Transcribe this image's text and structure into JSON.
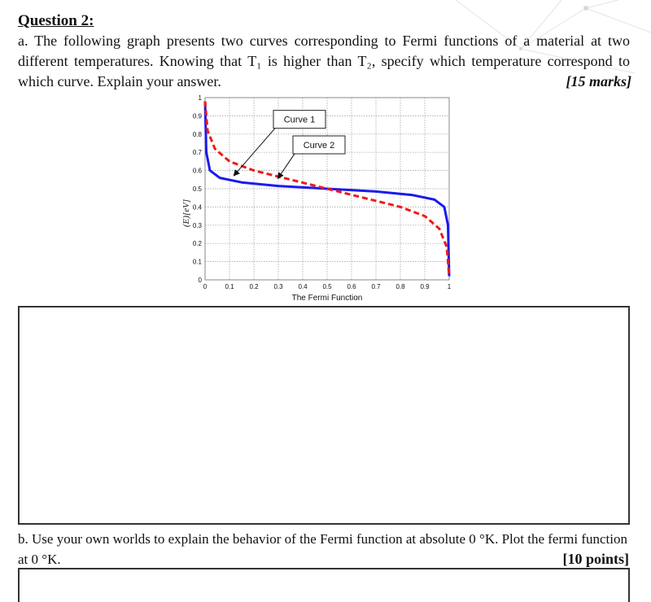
{
  "question": {
    "title": "Question 2:",
    "part_a_text": "a. The following graph presents two curves corresponding to Fermi functions of a material at two different temperatures. Knowing that T₁ is higher than T₂, specify which temperature correspond to which curve. Explain your answer.",
    "part_a_marks": "[15 marks]",
    "part_b_text": "b. Use your own worlds to explain the behavior of the Fermi function at absolute 0 °K. Plot the fermi function at 0 °K.",
    "part_b_marks": "[10 points]"
  },
  "chart_data": {
    "type": "line",
    "xlabel": "The Fermi Function",
    "ylabel": "(E)[eV]",
    "xlim": [
      0,
      1
    ],
    "ylim": [
      0,
      1
    ],
    "x_ticks": [
      "0",
      "0.1",
      "0.2",
      "0.3",
      "0.4",
      "0.5",
      "0.6",
      "0.7",
      "0.8",
      "0.9",
      "1"
    ],
    "y_ticks": [
      "0",
      "0.1",
      "0.2",
      "0.3",
      "0.4",
      "0.5",
      "0.6",
      "0.7",
      "0.8",
      "0.9",
      "1"
    ],
    "grid": true,
    "series": [
      {
        "name": "Curve 1",
        "color": "#1a1aee",
        "style": "solid",
        "points": [
          [
            0.0,
            0.98
          ],
          [
            0.005,
            0.7
          ],
          [
            0.02,
            0.6
          ],
          [
            0.06,
            0.56
          ],
          [
            0.15,
            0.535
          ],
          [
            0.3,
            0.515
          ],
          [
            0.5,
            0.5
          ],
          [
            0.7,
            0.485
          ],
          [
            0.85,
            0.465
          ],
          [
            0.94,
            0.44
          ],
          [
            0.98,
            0.4
          ],
          [
            0.995,
            0.3
          ],
          [
            1.0,
            0.02
          ]
        ]
      },
      {
        "name": "Curve 2",
        "color": "#ee1a1a",
        "style": "dashed",
        "points": [
          [
            0.0,
            0.98
          ],
          [
            0.01,
            0.82
          ],
          [
            0.04,
            0.72
          ],
          [
            0.1,
            0.65
          ],
          [
            0.2,
            0.6
          ],
          [
            0.35,
            0.55
          ],
          [
            0.5,
            0.5
          ],
          [
            0.65,
            0.45
          ],
          [
            0.8,
            0.4
          ],
          [
            0.9,
            0.35
          ],
          [
            0.96,
            0.28
          ],
          [
            0.99,
            0.18
          ],
          [
            1.0,
            0.02
          ]
        ]
      }
    ],
    "annotations": [
      {
        "text": "Curve 1",
        "target_series": "Curve 1"
      },
      {
        "text": "Curve 2",
        "target_series": "Curve 2"
      }
    ]
  }
}
